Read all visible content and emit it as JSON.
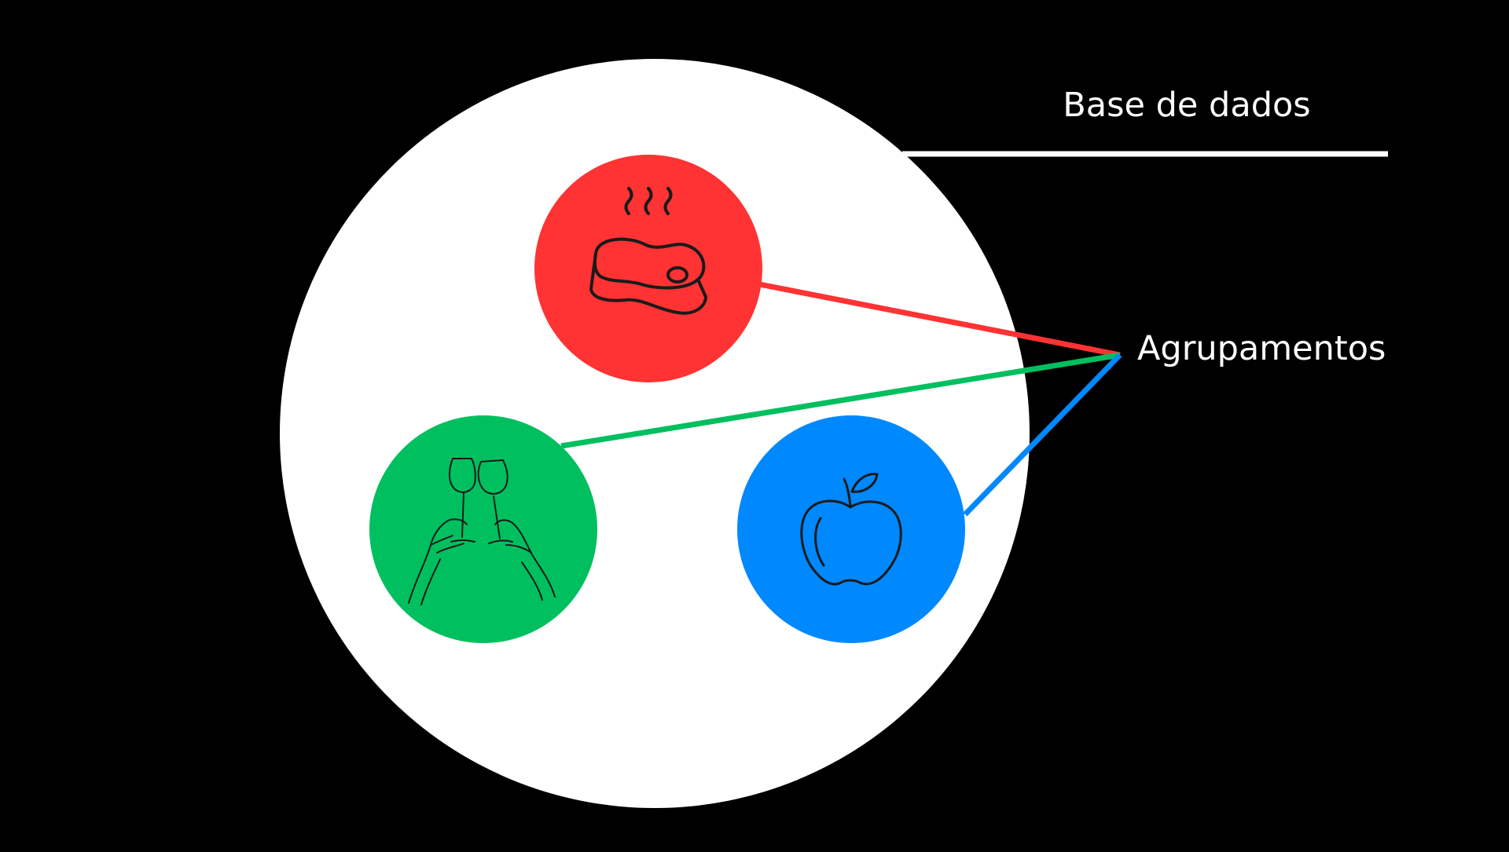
{
  "labels": {
    "database": "Base de dados",
    "clusters": "Agrupamentos"
  },
  "colors": {
    "background": "#000000",
    "database_circle": "#ffffff",
    "label_text": "#ffffff",
    "leader_line": "#ffffff",
    "cluster_meat": "#ff3333",
    "cluster_drinks": "#00bf5f",
    "cluster_fruit": "#0088ff",
    "icon_stroke": "#1a1a1a"
  },
  "clusters": [
    {
      "id": "meat",
      "icon": "steak-icon"
    },
    {
      "id": "drinks",
      "icon": "wine-toast-icon"
    },
    {
      "id": "fruit",
      "icon": "apple-icon"
    }
  ]
}
